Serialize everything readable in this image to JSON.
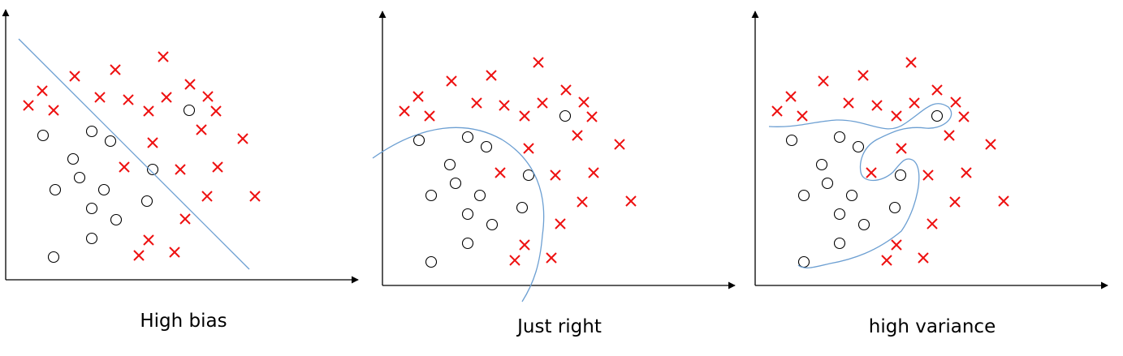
{
  "panels": [
    {
      "id": "high-bias",
      "caption": "High bias",
      "classes": {
        "o": [
          [
            66,
            317
          ],
          [
            53,
            167
          ],
          [
            113,
            162
          ],
          [
            136,
            174
          ],
          [
            90,
            196
          ],
          [
            98,
            219
          ],
          [
            68,
            234
          ],
          [
            128,
            234
          ],
          [
            113,
            257
          ],
          [
            143,
            271
          ],
          [
            181,
            248
          ],
          [
            113,
            294
          ],
          [
            188,
            209
          ],
          [
            233,
            136
          ]
        ],
        "x": [
          [
            52,
            112
          ],
          [
            35,
            130
          ],
          [
            66,
            136
          ],
          [
            92,
            94
          ],
          [
            142,
            86
          ],
          [
            201,
            70
          ],
          [
            123,
            120
          ],
          [
            158,
            123
          ],
          [
            183,
            137
          ],
          [
            205,
            120
          ],
          [
            234,
            104
          ],
          [
            256,
            119
          ],
          [
            266,
            137
          ],
          [
            248,
            160
          ],
          [
            188,
            176
          ],
          [
            153,
            206
          ],
          [
            222,
            209
          ],
          [
            268,
            206
          ],
          [
            299,
            171
          ],
          [
            255,
            242
          ],
          [
            314,
            242
          ],
          [
            228,
            270
          ],
          [
            183,
            296
          ],
          [
            171,
            315
          ],
          [
            215,
            311
          ]
        ]
      }
    },
    {
      "id": "just-right",
      "caption": "Just right",
      "classes": {
        "o": [
          [
            531,
            323
          ],
          [
            516,
            173
          ],
          [
            576,
            169
          ],
          [
            599,
            181
          ],
          [
            554,
            203
          ],
          [
            561,
            226
          ],
          [
            531,
            241
          ],
          [
            591,
            241
          ],
          [
            576,
            264
          ],
          [
            606,
            277
          ],
          [
            643,
            256
          ],
          [
            576,
            300
          ],
          [
            651,
            216
          ],
          [
            696,
            143
          ]
        ],
        "x": [
          [
            515,
            119
          ],
          [
            498,
            137
          ],
          [
            529,
            143
          ],
          [
            556,
            100
          ],
          [
            605,
            93
          ],
          [
            663,
            77
          ],
          [
            587,
            127
          ],
          [
            621,
            130
          ],
          [
            646,
            143
          ],
          [
            668,
            127
          ],
          [
            697,
            111
          ],
          [
            719,
            126
          ],
          [
            729,
            144
          ],
          [
            711,
            167
          ],
          [
            651,
            183
          ],
          [
            616,
            213
          ],
          [
            684,
            216
          ],
          [
            731,
            213
          ],
          [
            763,
            178
          ],
          [
            717,
            249
          ],
          [
            777,
            248
          ],
          [
            690,
            276
          ],
          [
            646,
            302
          ],
          [
            634,
            321
          ],
          [
            679,
            318
          ]
        ]
      }
    },
    {
      "id": "high-variance",
      "caption": "high variance",
      "classes": {
        "o": [
          [
            990,
            323
          ],
          [
            975,
            173
          ],
          [
            1034,
            169
          ],
          [
            1057,
            181
          ],
          [
            1012,
            203
          ],
          [
            1019,
            226
          ],
          [
            990,
            241
          ],
          [
            1049,
            241
          ],
          [
            1034,
            264
          ],
          [
            1064,
            277
          ],
          [
            1102,
            256
          ],
          [
            1034,
            300
          ],
          [
            1109,
            216
          ],
          [
            1154,
            143
          ]
        ],
        "x": [
          [
            974,
            119
          ],
          [
            957,
            137
          ],
          [
            988,
            143
          ],
          [
            1014,
            100
          ],
          [
            1063,
            93
          ],
          [
            1122,
            77
          ],
          [
            1045,
            127
          ],
          [
            1080,
            130
          ],
          [
            1104,
            143
          ],
          [
            1126,
            127
          ],
          [
            1154,
            111
          ],
          [
            1177,
            126
          ],
          [
            1187,
            144
          ],
          [
            1169,
            167
          ],
          [
            1110,
            183
          ],
          [
            1073,
            213
          ],
          [
            1143,
            216
          ],
          [
            1190,
            213
          ],
          [
            1220,
            178
          ],
          [
            1176,
            249
          ],
          [
            1236,
            248
          ],
          [
            1148,
            276
          ],
          [
            1104,
            302
          ],
          [
            1092,
            321
          ],
          [
            1137,
            318
          ]
        ]
      }
    }
  ],
  "colors": {
    "x_marker": "#ee1111",
    "boundary": "#6c9fd2",
    "axis": "#000000"
  }
}
